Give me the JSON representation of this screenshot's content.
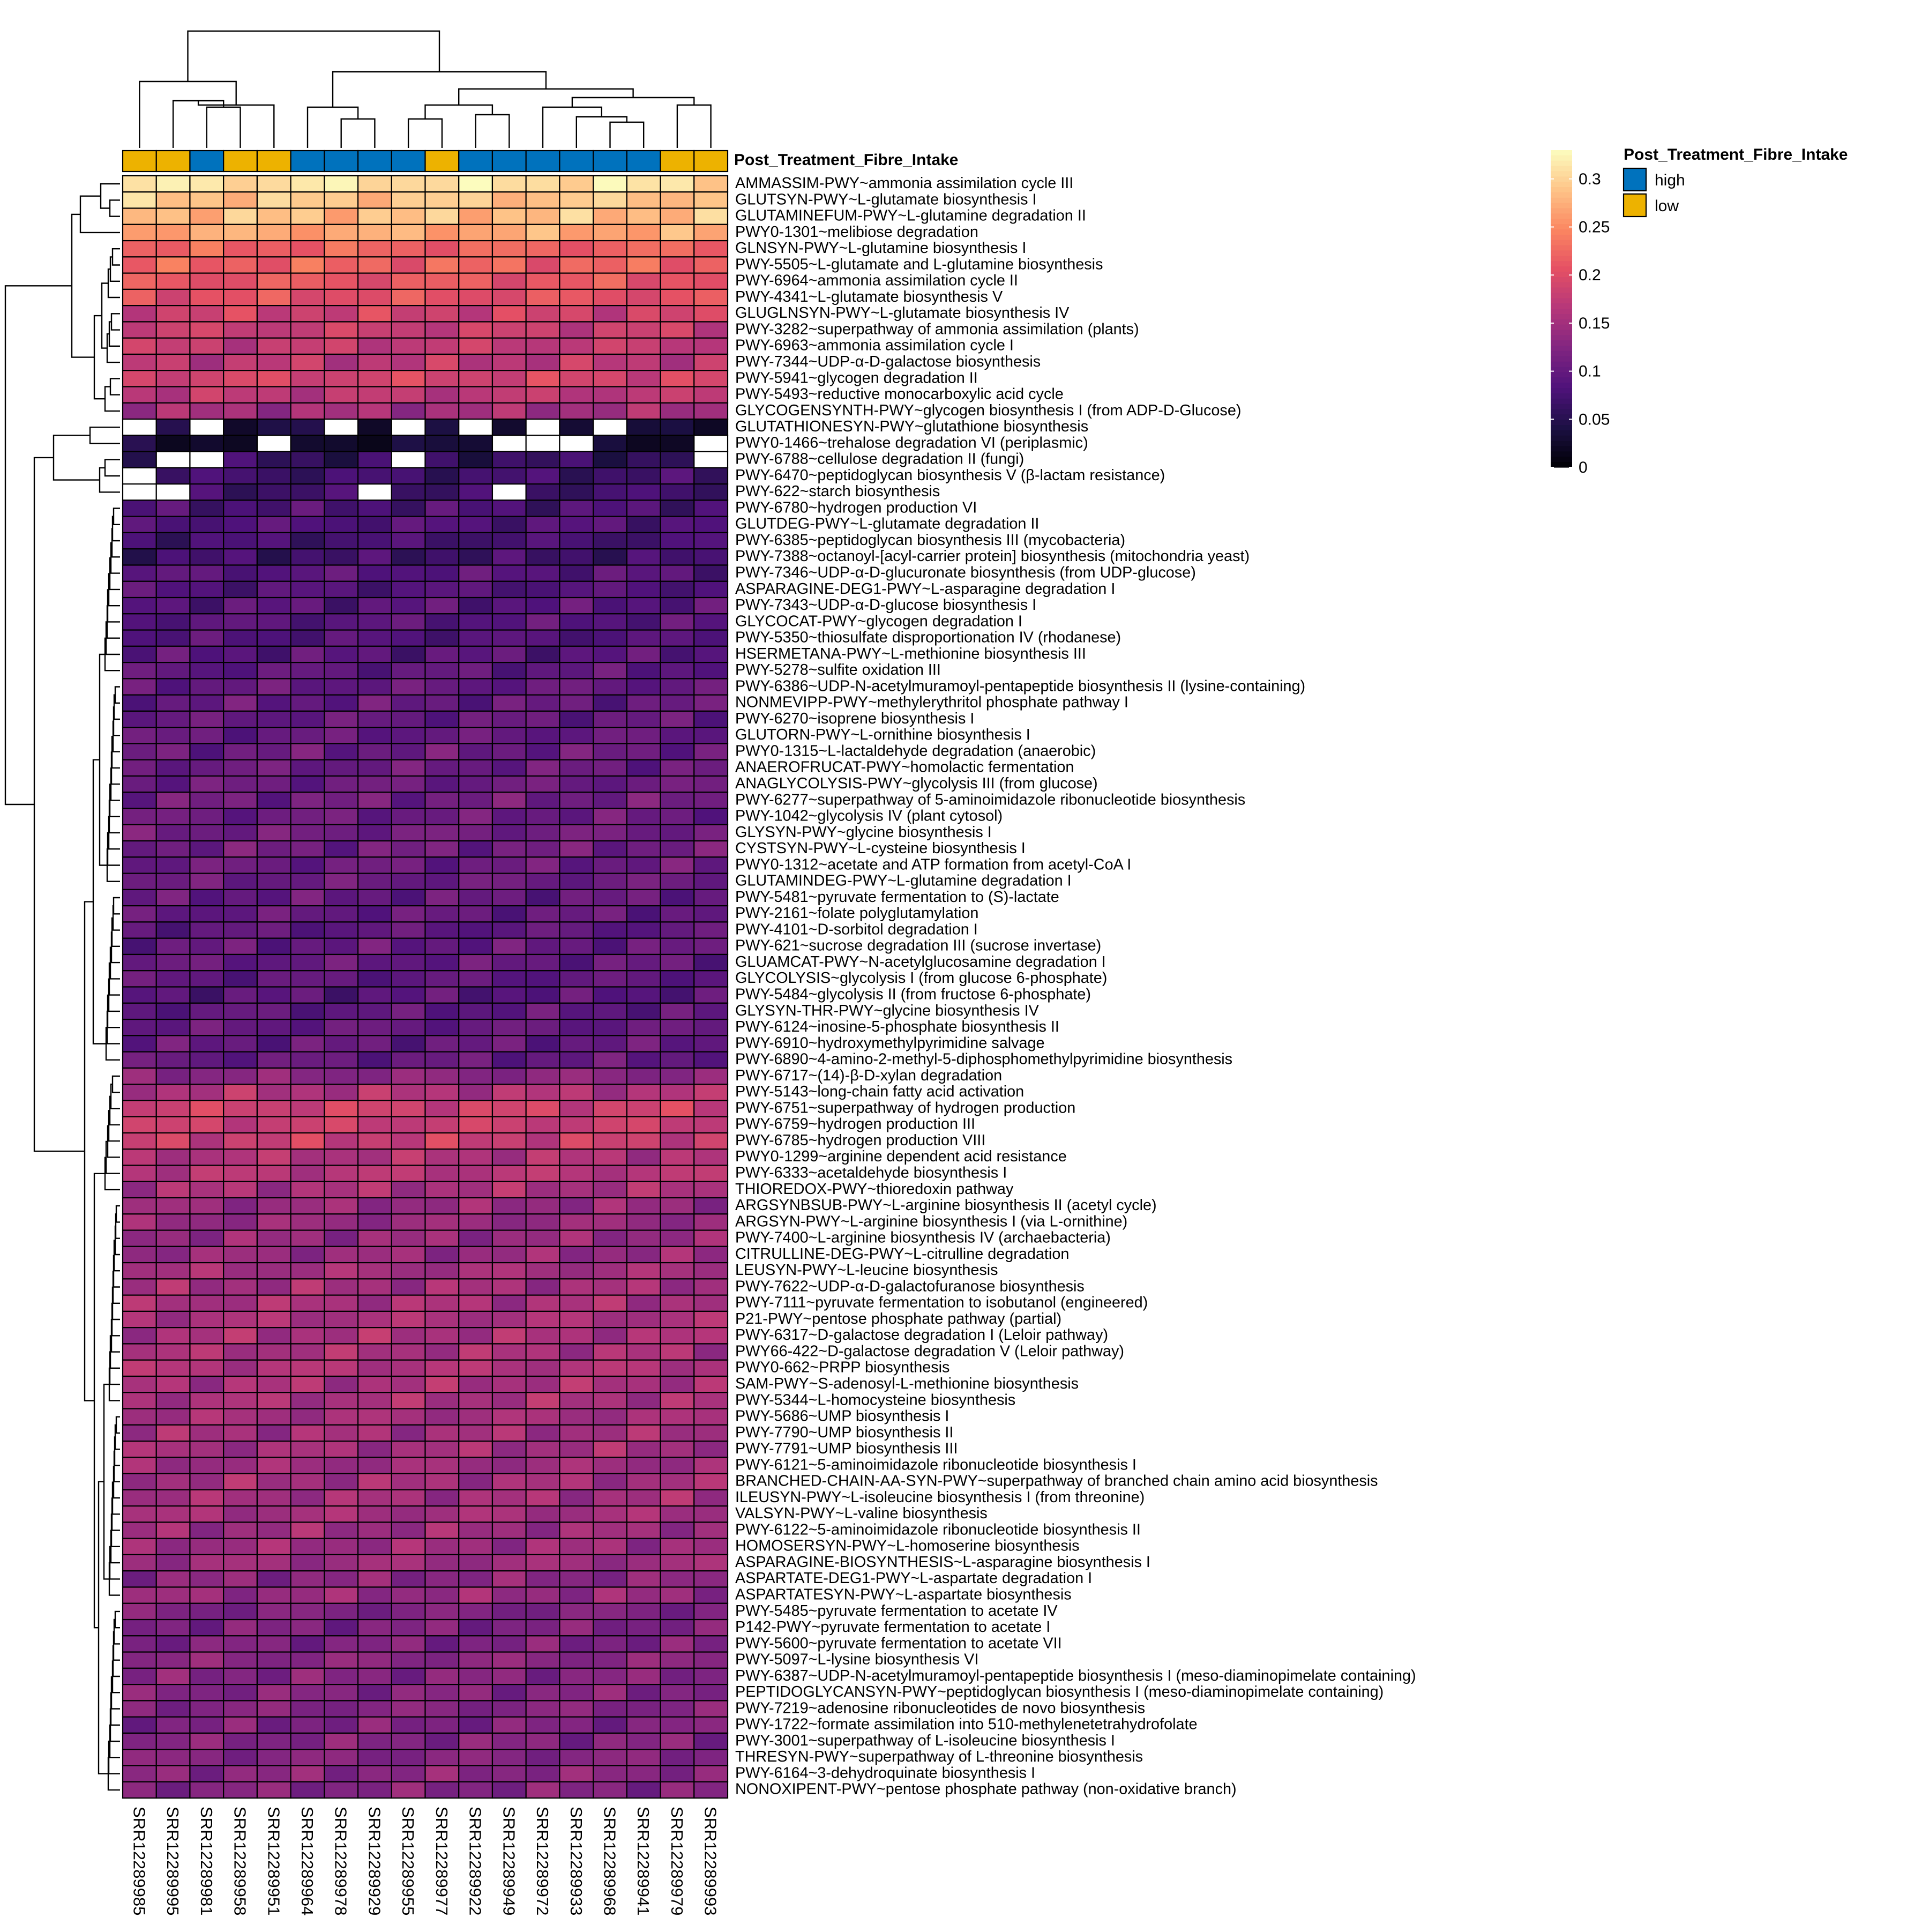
{
  "chart_data": {
    "type": "heatmap",
    "annotation": {
      "name": "Post_Treatment_Fibre_Intake",
      "levels": [
        {
          "label": "high",
          "color": "#0072BD"
        },
        {
          "label": "low",
          "color": "#EDB200"
        }
      ],
      "values": [
        "low",
        "low",
        "high",
        "low",
        "low",
        "high",
        "high",
        "high",
        "high",
        "low",
        "high",
        "high",
        "high",
        "high",
        "high",
        "high",
        "low",
        "low"
      ]
    },
    "columns": [
      "SRR12289985",
      "SRR12289995",
      "SRR12289981",
      "SRR12289958",
      "SRR12289951",
      "SRR12289964",
      "SRR12289978",
      "SRR12289929",
      "SRR12289955",
      "SRR12289977",
      "SRR12289922",
      "SRR12289949",
      "SRR12289972",
      "SRR12289933",
      "SRR12289968",
      "SRR12289941",
      "SRR12289979",
      "SRR12289993"
    ],
    "rows": [
      "AMMASSIM-PWY~ammonia assimilation cycle III",
      "GLUTSYN-PWY~L-glutamate biosynthesis I",
      "GLUTAMINEFUM-PWY~L-glutamine degradation II",
      "PWY0-1301~melibiose degradation",
      "GLNSYN-PWY~L-glutamine biosynthesis I",
      "PWY-5505~L-glutamate and L-glutamine biosynthesis",
      "PWY-6964~ammonia assimilation cycle II",
      "PWY-4341~L-glutamate biosynthesis V",
      "GLUGLNSYN-PWY~L-glutamate biosynthesis IV",
      "PWY-3282~superpathway of ammonia assimilation (plants)",
      "PWY-6963~ammonia assimilation cycle I",
      "PWY-7344~UDP-α-D-galactose biosynthesis",
      "PWY-5941~glycogen degradation II",
      "PWY-5493~reductive monocarboxylic acid cycle",
      "GLYCOGENSYNTH-PWY~glycogen biosynthesis I (from ADP-D-Glucose)",
      "GLUTATHIONESYN-PWY~glutathione biosynthesis",
      "PWY0-1466~trehalose degradation VI (periplasmic)",
      "PWY-6788~cellulose degradation II (fungi)",
      "PWY-6470~peptidoglycan biosynthesis V (β-lactam resistance)",
      "PWY-622~starch biosynthesis",
      "PWY-6780~hydrogen production VI",
      "GLUTDEG-PWY~L-glutamate degradation II",
      "PWY-6385~peptidoglycan biosynthesis III (mycobacteria)",
      "PWY-7388~octanoyl-[acyl-carrier protein] biosynthesis (mitochondria yeast)",
      "PWY-7346~UDP-α-D-glucuronate biosynthesis (from UDP-glucose)",
      "ASPARAGINE-DEG1-PWY~L-asparagine degradation I",
      "PWY-7343~UDP-α-D-glucose biosynthesis I",
      "GLYCOCAT-PWY~glycogen degradation I",
      "PWY-5350~thiosulfate disproportionation IV (rhodanese)",
      "HSERMETANA-PWY~L-methionine biosynthesis III",
      "PWY-5278~sulfite oxidation III",
      "PWY-6386~UDP-N-acetylmuramoyl-pentapeptide biosynthesis II (lysine-containing)",
      "NONMEVIPP-PWY~methylerythritol phosphate pathway I",
      "PWY-6270~isoprene biosynthesis I",
      "GLUTORN-PWY~L-ornithine biosynthesis I",
      "PWY0-1315~L-lactaldehyde degradation (anaerobic)",
      "ANAEROFRUCAT-PWY~homolactic fermentation",
      "ANAGLYCOLYSIS-PWY~glycolysis III (from glucose)",
      "PWY-6277~superpathway of 5-aminoimidazole ribonucleotide biosynthesis",
      "PWY-1042~glycolysis IV (plant cytosol)",
      "GLYSYN-PWY~glycine biosynthesis I",
      "CYSTSYN-PWY~L-cysteine biosynthesis I",
      "PWY0-1312~acetate and ATP formation from acetyl-CoA I",
      "GLUTAMINDEG-PWY~L-glutamine degradation I",
      "PWY-5481~pyruvate fermentation to (S)-lactate",
      "PWY-2161~folate polyglutamylation",
      "PWY-4101~D-sorbitol degradation I",
      "PWY-621~sucrose degradation III (sucrose invertase)",
      "GLUAMCAT-PWY~N-acetylglucosamine degradation I",
      "GLYCOLYSIS~glycolysis I (from glucose 6-phosphate)",
      "PWY-5484~glycolysis II (from fructose 6-phosphate)",
      "GLYSYN-THR-PWY~glycine biosynthesis IV",
      "PWY-6124~inosine-5-phosphate biosynthesis II",
      "PWY-6910~hydroxymethylpyrimidine salvage",
      "PWY-6890~4-amino-2-methyl-5-diphosphomethylpyrimidine biosynthesis",
      "PWY-6717~(14)-β-D-xylan degradation",
      "PWY-5143~long-chain fatty acid activation",
      "PWY-6751~superpathway of hydrogen production",
      "PWY-6759~hydrogen production III",
      "PWY-6785~hydrogen production VIII",
      "PWY0-1299~arginine dependent acid resistance",
      "PWY-6333~acetaldehyde biosynthesis I",
      "THIOREDOX-PWY~thioredoxin pathway",
      "ARGSYNBSUB-PWY~L-arginine biosynthesis II (acetyl cycle)",
      "ARGSYN-PWY~L-arginine biosynthesis I (via L-ornithine)",
      "PWY-7400~L-arginine biosynthesis IV (archaebacteria)",
      "CITRULLINE-DEG-PWY~L-citrulline degradation",
      "LEUSYN-PWY~L-leucine biosynthesis",
      "PWY-7622~UDP-α-D-galactofuranose biosynthesis",
      "PWY-7111~pyruvate fermentation to isobutanol (engineered)",
      "P21-PWY~pentose phosphate pathway (partial)",
      "PWY-6317~D-galactose degradation I (Leloir pathway)",
      "PWY66-422~D-galactose degradation V (Leloir pathway)",
      "PWY0-662~PRPP biosynthesis",
      "SAM-PWY~S-adenosyl-L-methionine biosynthesis",
      "PWY-5344~L-homocysteine biosynthesis",
      "PWY-5686~UMP biosynthesis I",
      "PWY-7790~UMP biosynthesis II",
      "PWY-7791~UMP biosynthesis III",
      "PWY-6121~5-aminoimidazole ribonucleotide biosynthesis I",
      "BRANCHED-CHAIN-AA-SYN-PWY~superpathway of branched chain amino acid biosynthesis",
      "ILEUSYN-PWY~L-isoleucine biosynthesis I (from threonine)",
      "VALSYN-PWY~L-valine biosynthesis",
      "PWY-6122~5-aminoimidazole ribonucleotide biosynthesis II",
      "HOMOSERSYN-PWY~L-homoserine biosynthesis",
      "ASPARAGINE-BIOSYNTHESIS~L-asparagine biosynthesis I",
      "ASPARTATE-DEG1-PWY~L-aspartate degradation I",
      "ASPARTATESYN-PWY~L-aspartate biosynthesis",
      "PWY-5485~pyruvate fermentation to acetate IV",
      "P142-PWY~pyruvate fermentation to acetate I",
      "PWY-5600~pyruvate fermentation to acetate VII",
      "PWY-5097~L-lysine biosynthesis VI",
      "PWY-6387~UDP-N-acetylmuramoyl-pentapeptide biosynthesis I (meso-diaminopimelate containing)",
      "PEPTIDOGLYCANSYN-PWY~peptidoglycan biosynthesis I (meso-diaminopimelate containing)",
      "PWY-7219~adenosine ribonucleotides de novo biosynthesis",
      "PWY-1722~formate assimilation into 510-methylenetetrahydrofolate",
      "PWY-3001~superpathway of L-isoleucine biosynthesis I",
      "THRESYN-PWY~superpathway of L-threonine biosynthesis",
      "PWY-6164~3-dehydroquinate biosynthesis I",
      "NONOXIPENT-PWY~pentose phosphate pathway (non-oxidative branch)"
    ],
    "row_base_values": [
      0.31,
      0.29,
      0.285,
      0.27,
      0.22,
      0.22,
      0.21,
      0.205,
      0.185,
      0.18,
      0.175,
      0.17,
      0.19,
      0.17,
      0.15,
      0.04,
      0.03,
      0.06,
      0.07,
      0.07,
      0.08,
      0.085,
      0.075,
      0.07,
      0.09,
      0.085,
      0.09,
      0.09,
      0.085,
      0.09,
      0.095,
      0.1,
      0.1,
      0.1,
      0.1,
      0.105,
      0.105,
      0.105,
      0.11,
      0.105,
      0.11,
      0.11,
      0.105,
      0.105,
      0.1,
      0.1,
      0.095,
      0.1,
      0.1,
      0.095,
      0.09,
      0.095,
      0.1,
      0.1,
      0.1,
      0.13,
      0.16,
      0.185,
      0.18,
      0.18,
      0.16,
      0.165,
      0.155,
      0.14,
      0.14,
      0.14,
      0.14,
      0.15,
      0.15,
      0.155,
      0.155,
      0.155,
      0.155,
      0.16,
      0.155,
      0.155,
      0.15,
      0.15,
      0.15,
      0.145,
      0.15,
      0.15,
      0.15,
      0.145,
      0.145,
      0.145,
      0.13,
      0.14,
      0.12,
      0.12,
      0.12,
      0.13,
      0.125,
      0.125,
      0.125,
      0.12,
      0.125,
      0.125,
      0.13,
      0.125
    ],
    "missing_cells": [
      [
        15,
        0
      ],
      [
        15,
        2
      ],
      [
        15,
        6
      ],
      [
        15,
        8
      ],
      [
        15,
        10
      ],
      [
        15,
        12
      ],
      [
        15,
        14
      ],
      [
        16,
        4
      ],
      [
        16,
        11
      ],
      [
        16,
        12
      ],
      [
        16,
        13
      ],
      [
        16,
        17
      ],
      [
        17,
        1
      ],
      [
        17,
        2
      ],
      [
        17,
        8
      ],
      [
        17,
        17
      ],
      [
        18,
        0
      ],
      [
        19,
        0
      ],
      [
        19,
        1
      ],
      [
        19,
        7
      ],
      [
        19,
        11
      ]
    ],
    "colorbar": {
      "label": "",
      "min": 0,
      "max": 0.33,
      "ticks": [
        0,
        0.05,
        0.1,
        0.15,
        0.2,
        0.25,
        0.3
      ],
      "tick_labels": [
        "0",
        "0.05",
        "0.1",
        "0.15",
        "0.2",
        "0.25",
        "0.3"
      ],
      "palette": [
        "#000004",
        "#1C1044",
        "#4F127B",
        "#812581",
        "#B5367A",
        "#E55064",
        "#FB8761",
        "#FEC488",
        "#FCFDBF"
      ]
    }
  }
}
